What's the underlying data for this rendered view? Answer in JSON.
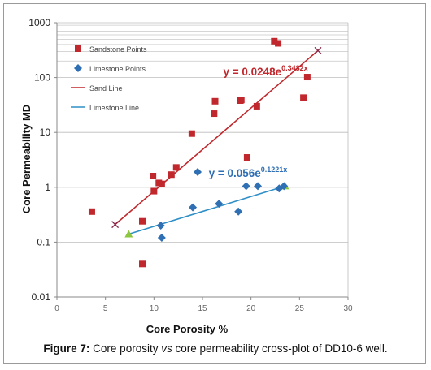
{
  "caption": {
    "label": "Figure 7:",
    "text_before": "Core porosity",
    "text_italic": "vs",
    "text_after": "core permeability cross-plot of DD10-6 well."
  },
  "chart_data": {
    "type": "scatter",
    "xlabel": "Core Porosity %",
    "ylabel": "Core Permeability MD",
    "xlim": [
      0,
      30
    ],
    "ylim": [
      0.01,
      1000
    ],
    "y_scale": "log",
    "x_ticks": [
      "0",
      "5",
      "10",
      "15",
      "20",
      "25",
      "30"
    ],
    "y_ticks": [
      "0.01",
      "0.1",
      "1",
      "10",
      "100",
      "1000"
    ],
    "grid": "horizontal minor lines near top",
    "legend_position": "top-left",
    "series": [
      {
        "name": "Sandstone Points",
        "marker": "square",
        "color": "#c0282d",
        "points": [
          [
            3.6,
            0.36
          ],
          [
            9.9,
            1.6
          ],
          [
            10.0,
            0.85
          ],
          [
            10.5,
            1.2
          ],
          [
            10.8,
            1.15
          ],
          [
            8.8,
            0.24
          ],
          [
            8.8,
            0.04
          ],
          [
            11.8,
            1.7
          ],
          [
            12.3,
            2.3
          ],
          [
            13.9,
            9.5
          ],
          [
            16.2,
            22
          ],
          [
            16.3,
            37
          ],
          [
            18.9,
            38
          ],
          [
            19.0,
            39
          ],
          [
            19.6,
            3.5
          ],
          [
            20.6,
            30
          ],
          [
            22.4,
            460
          ],
          [
            22.8,
            420
          ],
          [
            25.4,
            43
          ],
          [
            25.8,
            102
          ]
        ]
      },
      {
        "name": "Limestone Points",
        "marker": "diamond",
        "color": "#2f6fb3",
        "points": [
          [
            10.7,
            0.2
          ],
          [
            10.8,
            0.12
          ],
          [
            14.0,
            0.43
          ],
          [
            14.5,
            1.9
          ],
          [
            16.7,
            0.5
          ],
          [
            18.7,
            0.36
          ],
          [
            19.5,
            1.05
          ],
          [
            20.7,
            1.05
          ],
          [
            22.9,
            0.95
          ],
          [
            23.4,
            1.05
          ]
        ]
      },
      {
        "name": "Sand Line",
        "type": "line",
        "color": "#c0282d",
        "end_marker": "x",
        "points": [
          [
            6.0,
            0.21
          ],
          [
            26.9,
            310
          ]
        ]
      },
      {
        "name": "Limestone Line",
        "type": "line",
        "color": "#2f8fc7",
        "end_marker": "triangle",
        "end_marker_color": "#8dc63f",
        "points": [
          [
            7.4,
            0.14
          ],
          [
            23.5,
            1.05
          ]
        ]
      }
    ],
    "annotations": [
      {
        "text": "y = 0.0248e",
        "superscript": "0.3482x",
        "color": "#c0282d",
        "anchor": [
          23.0,
          110
        ]
      },
      {
        "text": "y = 0.056e",
        "superscript": "0.1221x",
        "color": "#2f6fb3",
        "anchor": [
          21.5,
          1.55
        ]
      }
    ]
  }
}
